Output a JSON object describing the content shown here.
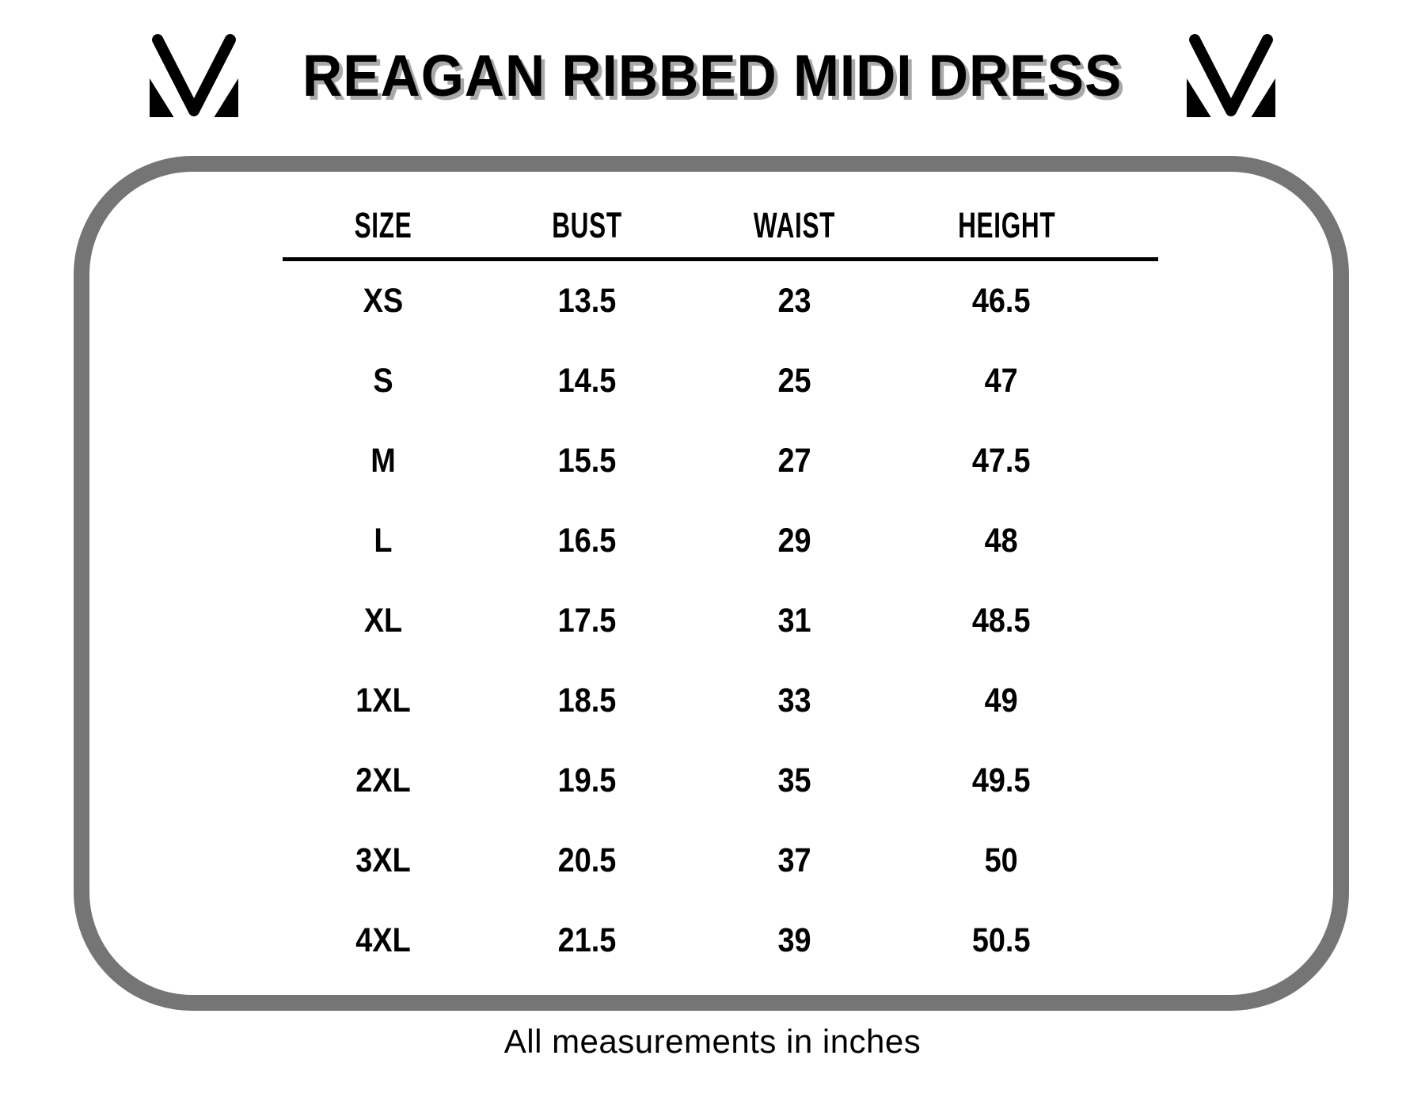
{
  "header": {
    "title": "REAGAN RIBBED MIDI DRESS",
    "brand_logo": "mm-monogram-icon"
  },
  "table": {
    "columns": [
      "SIZE",
      "BUST",
      "WAIST",
      "HEIGHT"
    ],
    "rows": [
      [
        "XS",
        "13.5",
        "23",
        "46.5"
      ],
      [
        "S",
        "14.5",
        "25",
        "47"
      ],
      [
        "M",
        "15.5",
        "27",
        "47.5"
      ],
      [
        "L",
        "16.5",
        "29",
        "48"
      ],
      [
        "XL",
        "17.5",
        "31",
        "48.5"
      ],
      [
        "1XL",
        "18.5",
        "33",
        "49"
      ],
      [
        "2XL",
        "19.5",
        "35",
        "49.5"
      ],
      [
        "3XL",
        "20.5",
        "37",
        "50"
      ],
      [
        "4XL",
        "21.5",
        "39",
        "50.5"
      ]
    ]
  },
  "footer": {
    "note": "All measurements in inches"
  },
  "colors": {
    "border_gray": "#757575",
    "title_shadow": "#a9a9a9",
    "text": "#000000",
    "background": "#ffffff"
  },
  "chart_data": {
    "type": "table",
    "title": "REAGAN RIBBED MIDI DRESS",
    "columns": [
      "SIZE",
      "BUST",
      "WAIST",
      "HEIGHT"
    ],
    "rows": [
      [
        "XS",
        13.5,
        23,
        46.5
      ],
      [
        "S",
        14.5,
        25,
        47
      ],
      [
        "M",
        15.5,
        27,
        47.5
      ],
      [
        "L",
        16.5,
        29,
        48
      ],
      [
        "XL",
        17.5,
        31,
        48.5
      ],
      [
        "1XL",
        18.5,
        33,
        49
      ],
      [
        "2XL",
        19.5,
        35,
        49.5
      ],
      [
        "3XL",
        20.5,
        37,
        50
      ],
      [
        "4XL",
        21.5,
        39,
        50.5
      ]
    ],
    "units": "inches",
    "note": "All measurements in inches"
  }
}
